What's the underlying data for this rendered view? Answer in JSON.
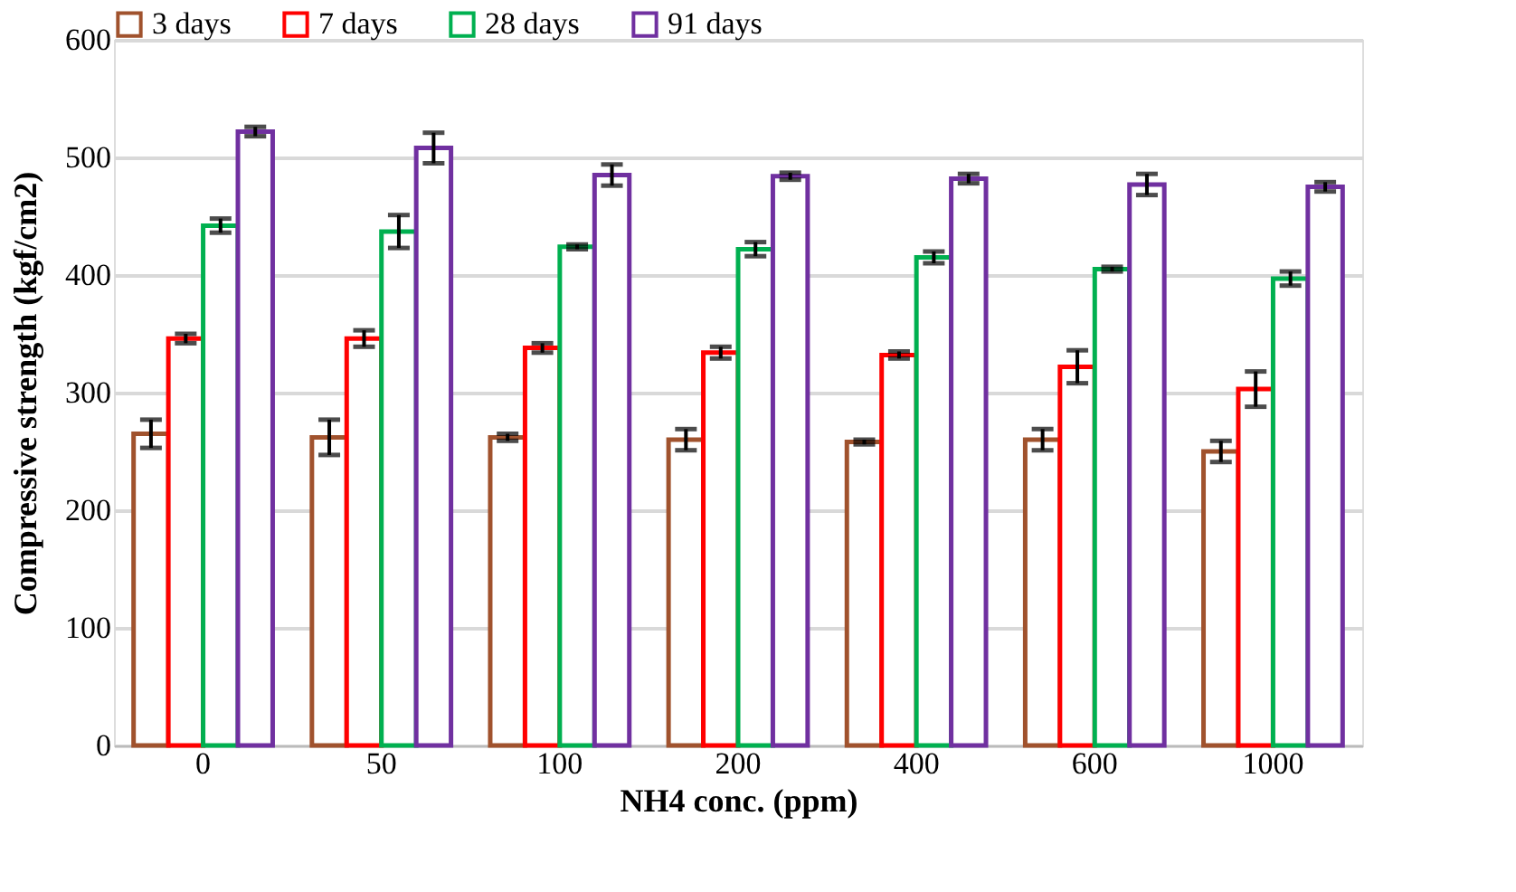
{
  "chart_data": {
    "type": "bar",
    "xlabel": "NH4 conc. (ppm)",
    "ylabel": "Compressive strength (kgf/cm2)",
    "categories": [
      "0",
      "50",
      "100",
      "200",
      "400",
      "600",
      "1000"
    ],
    "series": [
      {
        "name": "3 days",
        "color": "#a0522d",
        "values": [
          265,
          262,
          262,
          260,
          258,
          260,
          250
        ],
        "errors": [
          12,
          15,
          3,
          9,
          2,
          9,
          9
        ]
      },
      {
        "name": "7 days",
        "color": "#ff0000",
        "values": [
          346,
          346,
          338,
          334,
          332,
          322,
          303
        ],
        "errors": [
          4,
          7,
          4,
          5,
          3,
          14,
          15
        ]
      },
      {
        "name": "28 days",
        "color": "#00b050",
        "values": [
          442,
          437,
          424,
          422,
          415,
          405,
          397
        ],
        "errors": [
          6,
          14,
          2,
          6,
          5,
          2,
          6
        ]
      },
      {
        "name": "91 days",
        "color": "#7030a0",
        "values": [
          522,
          508,
          485,
          484,
          482,
          477,
          475
        ],
        "errors": [
          4,
          13,
          9,
          3,
          4,
          9,
          4
        ]
      }
    ],
    "ylim": [
      0,
      600
    ],
    "yticks": [
      0,
      100,
      200,
      300,
      400,
      500,
      600
    ],
    "grid": "y",
    "legend": "top"
  }
}
